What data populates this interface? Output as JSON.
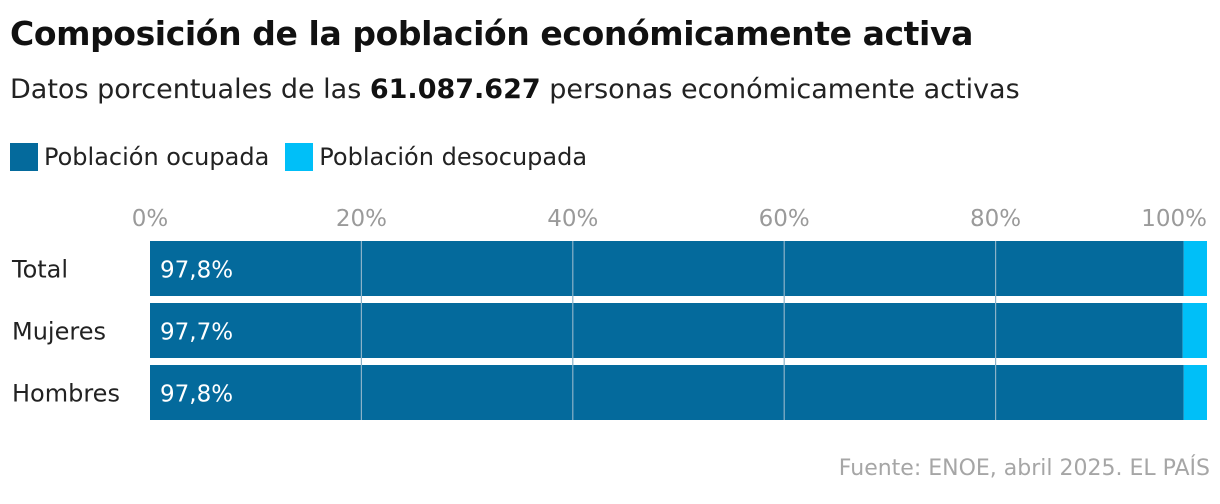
{
  "title": "Composición de la población económicamente activa",
  "subtitle": {
    "prefix": "Datos porcentuales de las ",
    "highlight": "61.087.627",
    "suffix": " personas económicamente activas"
  },
  "legend": [
    {
      "label": "Población ocupada",
      "color": "#046a9c"
    },
    {
      "label": "Población desocupada",
      "color": "#00bff8"
    }
  ],
  "source": "Fuente: ENOE, abril 2025. EL PAÍS",
  "colors": {
    "gridline": "#8bb2c8",
    "tick_label": "#9a9a9a",
    "value_label": "#ffffff"
  },
  "chart_data": {
    "type": "bar",
    "orientation": "horizontal",
    "stacked": true,
    "categories": [
      "Total",
      "Mujeres",
      "Hombres"
    ],
    "series": [
      {
        "name": "Población ocupada",
        "values": [
          97.8,
          97.7,
          97.8
        ],
        "labels": [
          "97,8%",
          "97,7%",
          "97,8%"
        ]
      },
      {
        "name": "Población desocupada",
        "values": [
          2.2,
          2.3,
          2.2
        ]
      }
    ],
    "xlim": [
      0,
      100
    ],
    "x_ticks": [
      0,
      20,
      40,
      60,
      80,
      100
    ],
    "x_tick_labels": [
      "0%",
      "20%",
      "40%",
      "60%",
      "80%",
      "100%"
    ],
    "grid": true,
    "legend_position": "top-left"
  }
}
